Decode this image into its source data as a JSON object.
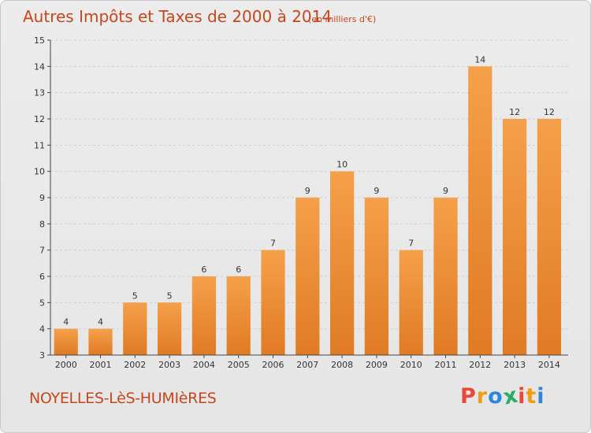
{
  "chart_data": {
    "type": "bar",
    "title": "Autres Impôts et Taxes de 2000 à 2014",
    "subtitle": "(en milliers d'€)",
    "categories": [
      "2000",
      "2001",
      "2002",
      "2003",
      "2004",
      "2005",
      "2006",
      "2007",
      "2008",
      "2009",
      "2010",
      "2011",
      "2012",
      "2013",
      "2014"
    ],
    "values": [
      4,
      4,
      5,
      5,
      6,
      6,
      7,
      9,
      10,
      9,
      7,
      9,
      14,
      12,
      12
    ],
    "ylim": [
      3,
      15
    ],
    "yticks": [
      3,
      4,
      5,
      6,
      7,
      8,
      9,
      10,
      11,
      12,
      13,
      14,
      15
    ],
    "grid": true,
    "bar_color": "#f5a04a",
    "bar_color_dark": "#e07b24"
  },
  "footer": {
    "commune": "NOYELLES-LèS-HUMIèRES",
    "logo": "Proxiti"
  },
  "colors": {
    "title": "#c8461e",
    "logo_letters": [
      "#e8473c",
      "#f39c12",
      "#2e86de",
      "#27ae60",
      "#e8473c",
      "#f39c12",
      "#2e86de"
    ]
  }
}
